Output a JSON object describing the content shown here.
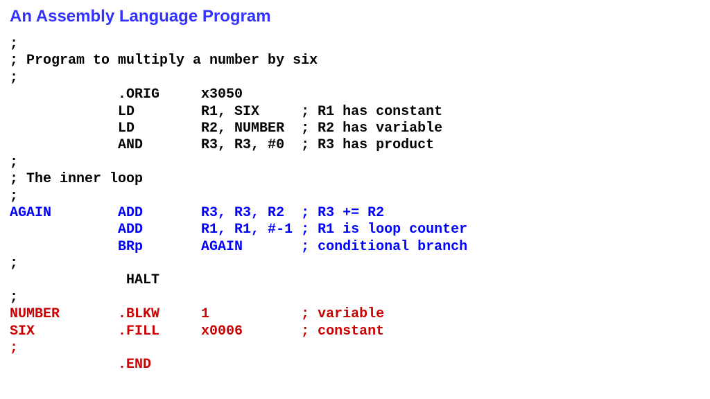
{
  "title": "An Assembly Language Program",
  "colors": {
    "title": "#3333ff",
    "black": "#000000",
    "blue": "#0000ff",
    "red": "#cc0000",
    "background": "#ffffff"
  },
  "typography": {
    "title_font": "Arial",
    "title_fontsize": 24,
    "title_weight": "bold",
    "code_font": "Courier New",
    "code_fontsize": 20,
    "code_weight": "bold"
  },
  "code": {
    "col_widths": {
      "label": 13,
      "opcode": 10,
      "operands": 12
    },
    "lines": [
      {
        "cls": "black",
        "label": ";",
        "opcode": "",
        "operands": "",
        "comment": ""
      },
      {
        "cls": "black",
        "label": "; Program to multiply a number by six",
        "flat": true
      },
      {
        "cls": "black",
        "label": ";",
        "opcode": "",
        "operands": "",
        "comment": ""
      },
      {
        "cls": "black",
        "label": "",
        "opcode": ".ORIG",
        "operands": "x3050",
        "comment": ""
      },
      {
        "cls": "black",
        "label": "",
        "opcode": "LD",
        "operands": "R1, SIX",
        "comment": "; R1 has constant"
      },
      {
        "cls": "black",
        "label": "",
        "opcode": "LD",
        "operands": "R2, NUMBER",
        "comment": "; R2 has variable"
      },
      {
        "cls": "black",
        "label": "",
        "opcode": "AND",
        "operands": "R3, R3, #0",
        "comment": "; R3 has product"
      },
      {
        "cls": "black",
        "label": ";",
        "opcode": "",
        "operands": "",
        "comment": ""
      },
      {
        "cls": "black",
        "label": "; The inner loop",
        "flat": true
      },
      {
        "cls": "black",
        "label": ";",
        "opcode": "",
        "operands": "",
        "comment": ""
      },
      {
        "cls": "blue",
        "label": "AGAIN",
        "opcode": "ADD",
        "operands": "R3, R3, R2",
        "comment": "; R3 += R2"
      },
      {
        "cls": "blue",
        "label": "",
        "opcode": "ADD",
        "operands": "R1, R1, #-1",
        "comment": "; R1 is loop counter"
      },
      {
        "cls": "blue",
        "label": "",
        "opcode": "BRp",
        "operands": "AGAIN",
        "comment": "; conditional branch"
      },
      {
        "cls": "black",
        "label": ";",
        "opcode": "",
        "operands": "",
        "comment": ""
      },
      {
        "cls": "black",
        "label": "",
        "opcode": " HALT",
        "operands": "",
        "comment": ""
      },
      {
        "cls": "black",
        "label": ";",
        "opcode": "",
        "operands": "",
        "comment": ""
      },
      {
        "cls": "red",
        "label": "NUMBER",
        "opcode": ".BLKW",
        "operands": "1",
        "comment": "; variable"
      },
      {
        "cls": "red",
        "label": "SIX",
        "opcode": ".FILL",
        "operands": "x0006",
        "comment": "; constant"
      },
      {
        "cls": "red",
        "label": ";",
        "opcode": "",
        "operands": "",
        "comment": ""
      },
      {
        "cls": "red",
        "label": "",
        "opcode": ".END",
        "operands": "",
        "comment": ""
      }
    ]
  }
}
